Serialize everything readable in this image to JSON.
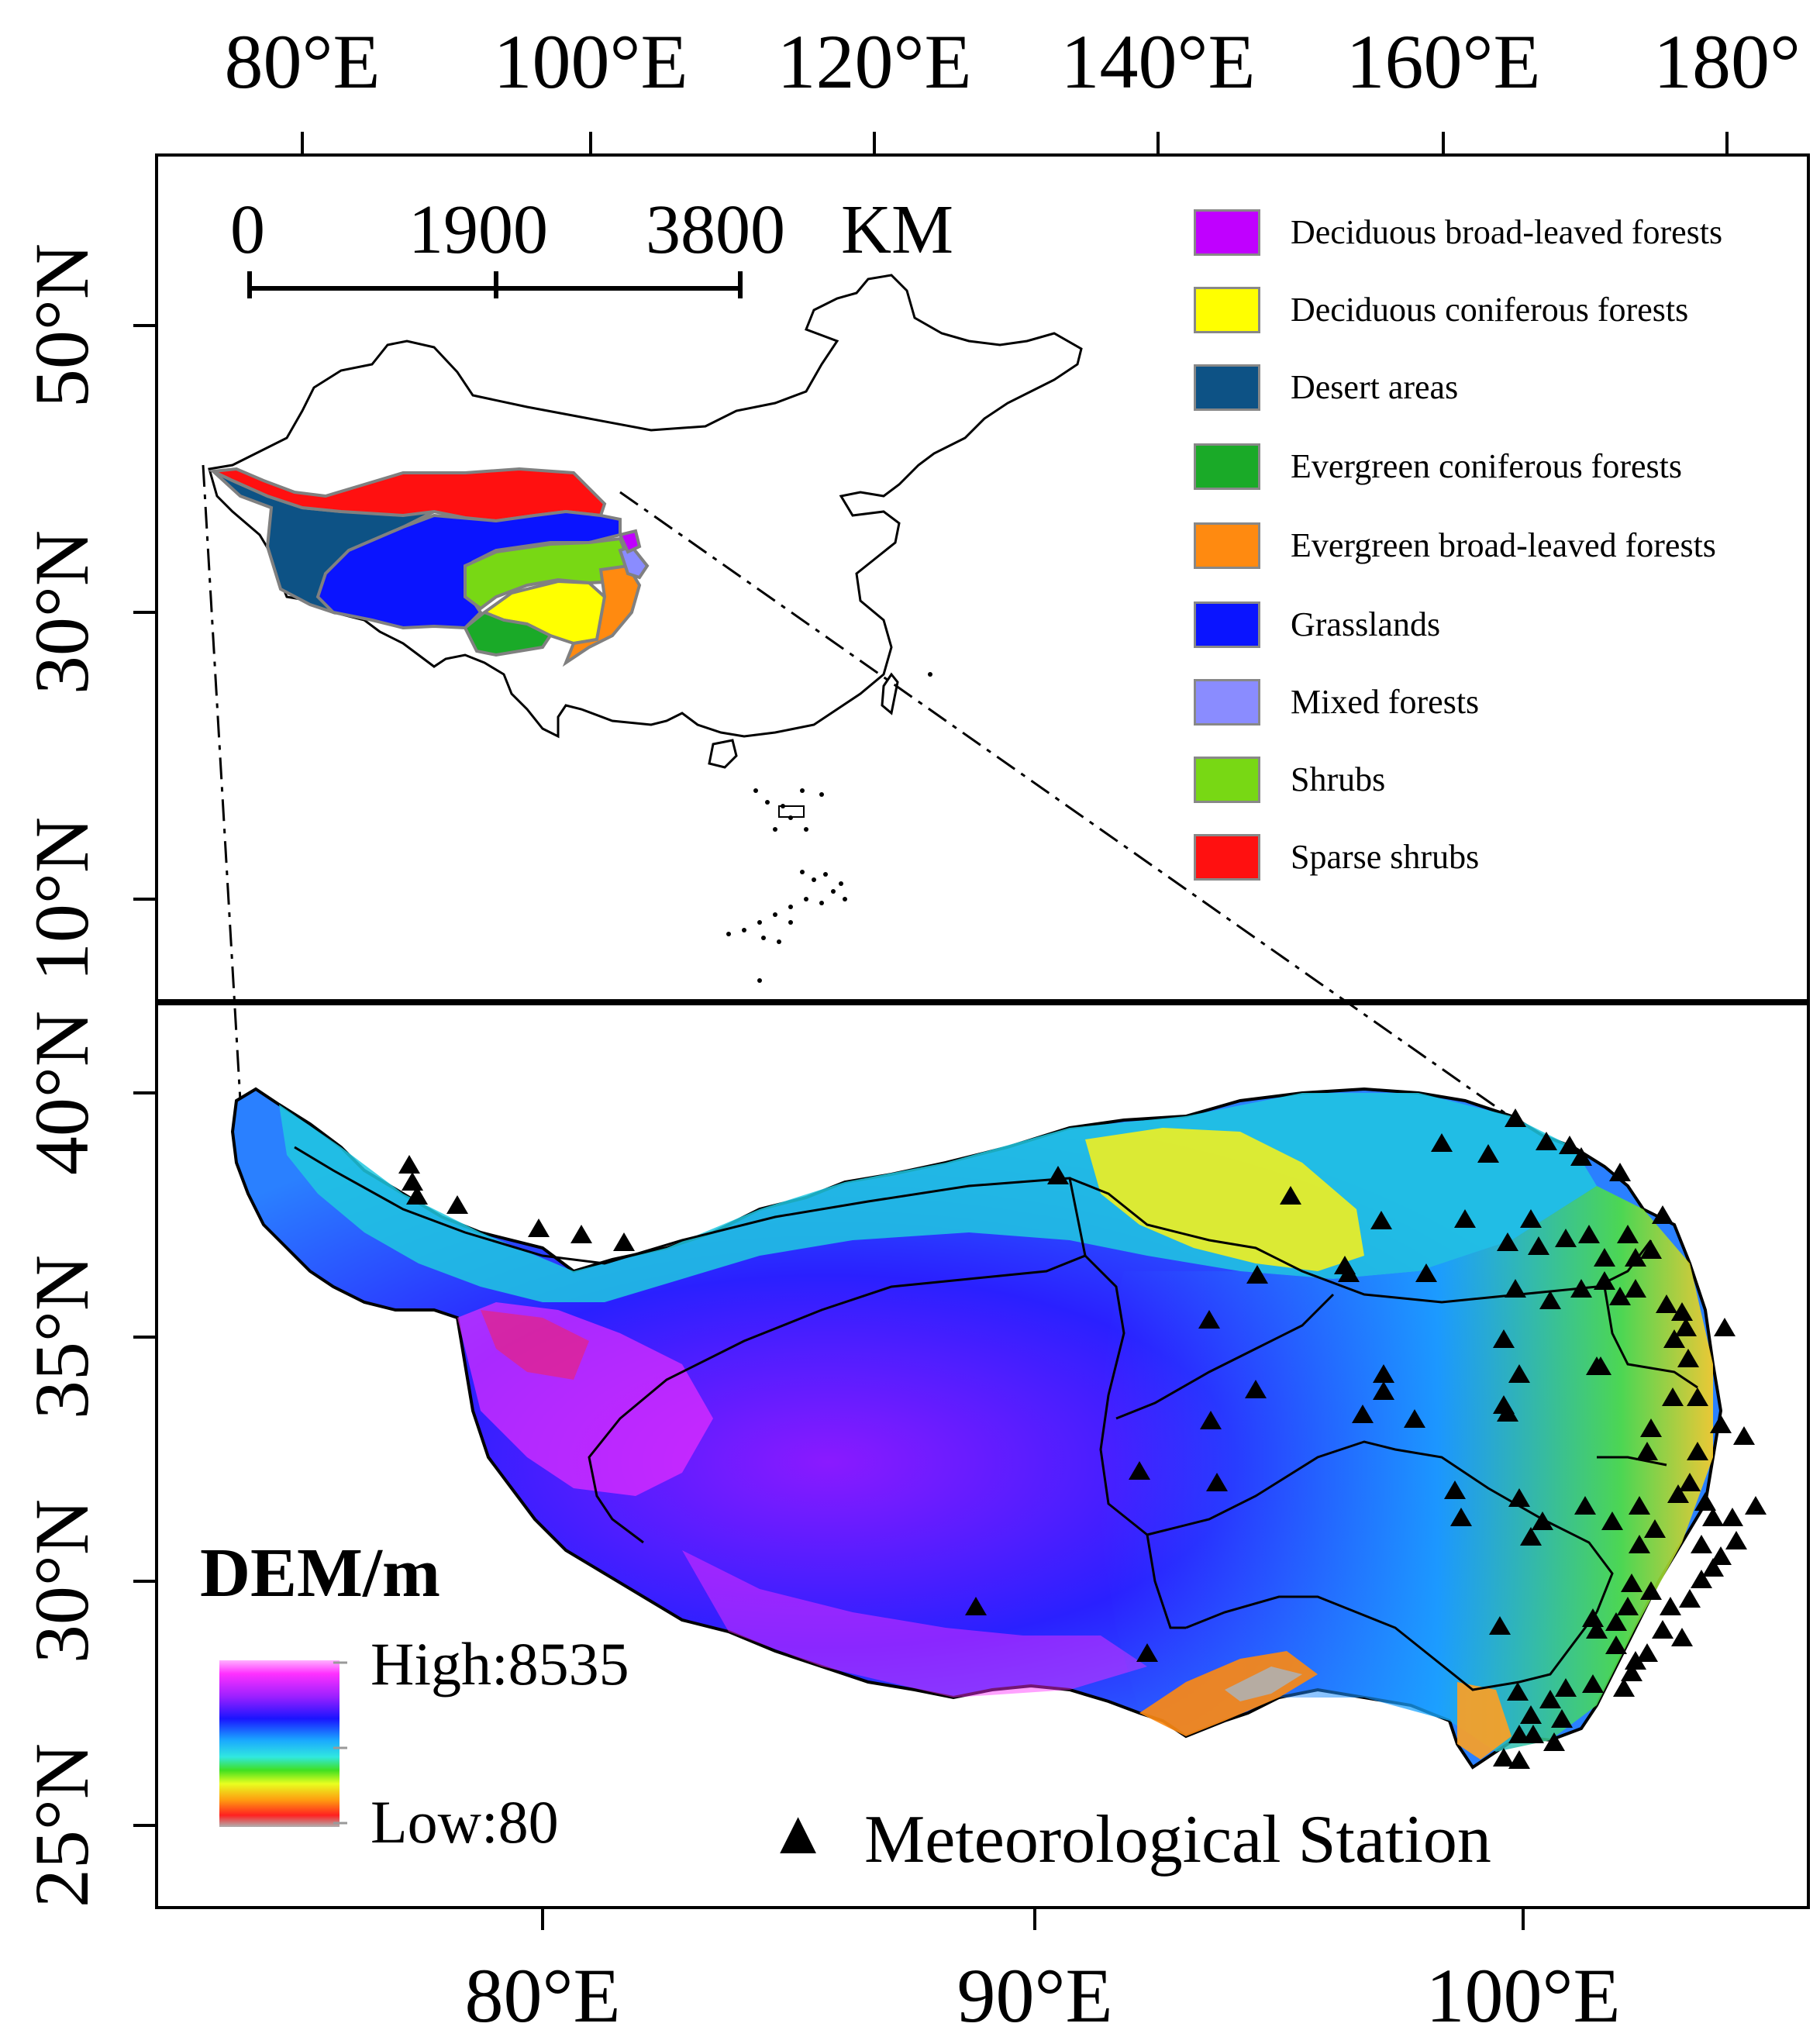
{
  "top_axis": {
    "labels": [
      "80°E",
      "100°E",
      "120°E",
      "140°E",
      "160°E",
      "180°"
    ]
  },
  "left_axis_inset": {
    "labels": [
      "50°N",
      "30°N",
      "10°N"
    ]
  },
  "left_axis_main": {
    "labels": [
      "40°N",
      "35°N",
      "30°N",
      "25°N"
    ]
  },
  "bottom_axis": {
    "labels": [
      "80°E",
      "90°E",
      "100°E"
    ]
  },
  "scale_bar": {
    "ticks": [
      "0",
      "1900",
      "3800"
    ],
    "unit": "KM"
  },
  "legend": {
    "items": [
      {
        "label": "Deciduous broad-leaved forests",
        "color": "#c000ff"
      },
      {
        "label": "Deciduous coniferous forests",
        "color": "#ffff00"
      },
      {
        "label": "Desert areas",
        "color": "#0d5285"
      },
      {
        "label": "Evergreen coniferous forests",
        "color": "#1aaa28"
      },
      {
        "label": "Evergreen broad-leaved forests",
        "color": "#ff8a10"
      },
      {
        "label": "Grasslands",
        "color": "#0a14ff"
      },
      {
        "label": "Mixed  forests",
        "color": "#8a8cff"
      },
      {
        "label": "Shrubs",
        "color": "#78d814"
      },
      {
        "label": "Sparse shrubs",
        "color": "#ff1010"
      }
    ]
  },
  "dem_legend": {
    "title": "DEM/m",
    "high": "High:8535",
    "low": "Low:80"
  },
  "station_legend": {
    "symbol": "▲",
    "label": "Meteorological Station"
  },
  "colors": {
    "frame": "#000000",
    "region_border": "#808080"
  }
}
